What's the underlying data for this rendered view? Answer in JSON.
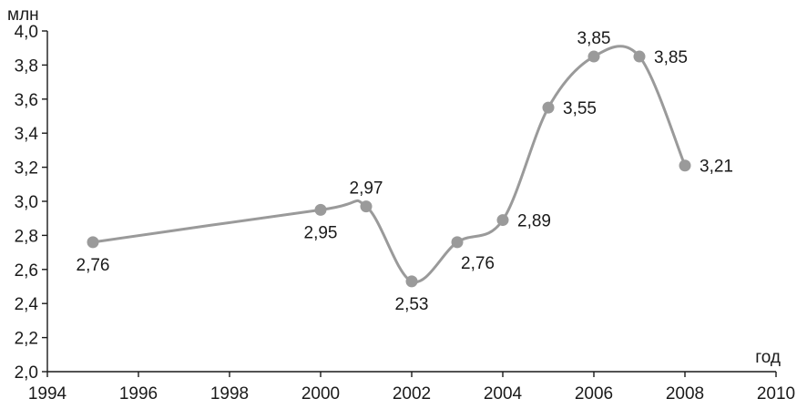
{
  "chart_data": {
    "type": "line",
    "title": "",
    "xlabel": "год",
    "ylabel": "млн",
    "xlim": [
      1994,
      2010
    ],
    "ylim": [
      2.0,
      4.0
    ],
    "x_ticks": [
      1994,
      1996,
      1998,
      2000,
      2002,
      2004,
      2006,
      2008,
      2010
    ],
    "x_tick_labels": [
      "1994",
      "1996",
      "1998",
      "2000",
      "2002",
      "2004",
      "2006",
      "2008",
      "2010"
    ],
    "y_ticks": [
      2.0,
      2.2,
      2.4,
      2.6,
      2.8,
      3.0,
      3.2,
      3.4,
      3.6,
      3.8,
      4.0
    ],
    "y_tick_labels": [
      "2,0",
      "2,2",
      "2,4",
      "2,6",
      "2,8",
      "3,0",
      "3,2",
      "3,4",
      "3,6",
      "3,8",
      "4,0"
    ],
    "grid": false,
    "legend": "none",
    "smooth": true,
    "line_color": "#9a9a9a",
    "marker_color": "#9a9a9a",
    "axis_color": "#1a1a1a",
    "series": [
      {
        "x": [
          1995,
          2000,
          2001,
          2002,
          2003,
          2004,
          2005,
          2006,
          2007,
          2008
        ],
        "values": [
          2.76,
          2.95,
          2.97,
          2.53,
          2.76,
          2.89,
          3.55,
          3.85,
          3.85,
          3.21
        ],
        "labels": [
          "2,76",
          "2,95",
          "2,97",
          "2,53",
          "2,76",
          "2,89",
          "3,55",
          "3,85",
          "3,85",
          "3,21"
        ],
        "label_positions": [
          "below",
          "below",
          "above",
          "below",
          "below-right",
          "right",
          "right",
          "above",
          "right",
          "right"
        ]
      }
    ]
  }
}
